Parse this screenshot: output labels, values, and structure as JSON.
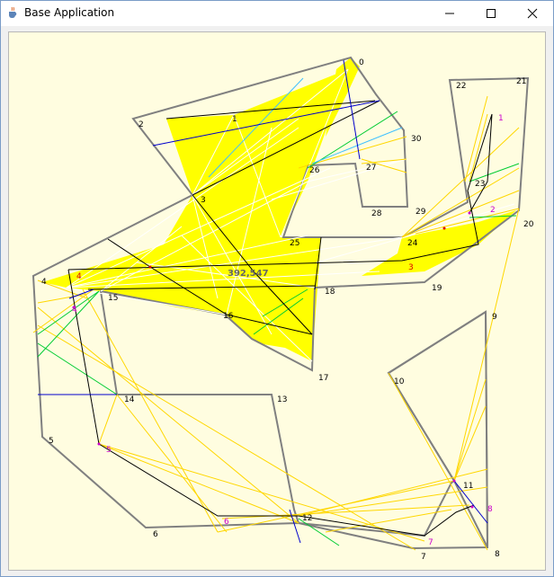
{
  "window": {
    "title": "Base Application",
    "icon": "java-cup-icon",
    "controls": [
      "minimize-icon",
      "maximize-icon",
      "close-icon"
    ]
  },
  "canvas": {
    "area_label": "392,547",
    "vertex_labels": [
      "0",
      "1",
      "2",
      "3",
      "4",
      "5",
      "6",
      "7",
      "8",
      "9",
      "10",
      "11",
      "12",
      "13",
      "14",
      "15",
      "16",
      "17",
      "18",
      "19",
      "20",
      "21",
      "22",
      "23",
      "24",
      "25",
      "26",
      "27",
      "28",
      "29",
      "30"
    ],
    "guard_labels": [
      "1",
      "2",
      "3",
      "4",
      "4",
      "5",
      "6",
      "7",
      "8"
    ],
    "colors": {
      "background": "#fffde0",
      "polygon_edge": "#808080",
      "visible_region": "#ffff00",
      "guard_magenta": "#cc00cc",
      "guard_red": "#dd0000"
    }
  }
}
